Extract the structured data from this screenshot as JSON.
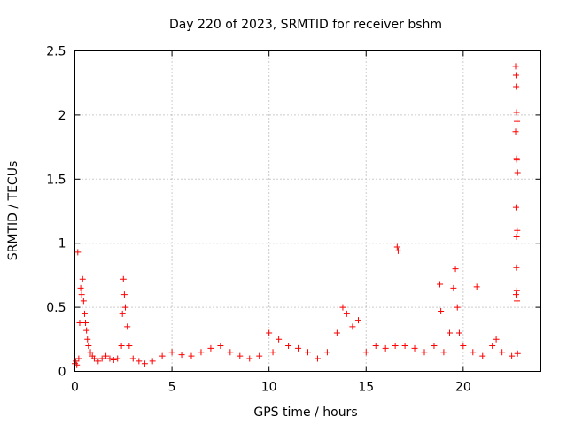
{
  "chart_data": {
    "type": "scatter",
    "title": "Day 220 of 2023, SRMTID for receiver bshm",
    "xlabel": "GPS time / hours",
    "ylabel": "SRMTID / TECUs",
    "xlim": [
      0,
      24
    ],
    "ylim": [
      0,
      2.5
    ],
    "grid": true,
    "marker": "+",
    "point_color": "#ff0000",
    "xticks": [
      0,
      5,
      10,
      15,
      20
    ],
    "xtick_labels": [
      "0",
      "5",
      "10",
      "15",
      "20"
    ],
    "yticks": [
      0,
      0.5,
      1,
      1.5,
      2,
      2.5
    ],
    "ytick_labels": [
      "0",
      "0.5",
      "1",
      "1.5",
      "2",
      "2.5"
    ],
    "series": [
      {
        "name": "SRMTID",
        "points": [
          [
            0.0,
            0.06
          ],
          [
            0.05,
            0.08
          ],
          [
            0.1,
            0.05
          ],
          [
            0.15,
            0.93
          ],
          [
            0.2,
            0.1
          ],
          [
            0.25,
            0.38
          ],
          [
            0.3,
            0.65
          ],
          [
            0.35,
            0.6
          ],
          [
            0.4,
            0.72
          ],
          [
            0.45,
            0.55
          ],
          [
            0.5,
            0.45
          ],
          [
            0.55,
            0.38
          ],
          [
            0.6,
            0.32
          ],
          [
            0.65,
            0.25
          ],
          [
            0.7,
            0.2
          ],
          [
            0.8,
            0.15
          ],
          [
            0.9,
            0.12
          ],
          [
            1.0,
            0.1
          ],
          [
            1.2,
            0.08
          ],
          [
            1.4,
            0.1
          ],
          [
            1.6,
            0.12
          ],
          [
            1.8,
            0.1
          ],
          [
            2.0,
            0.09
          ],
          [
            2.2,
            0.1
          ],
          [
            2.4,
            0.2
          ],
          [
            2.45,
            0.45
          ],
          [
            2.5,
            0.72
          ],
          [
            2.55,
            0.6
          ],
          [
            2.6,
            0.5
          ],
          [
            2.7,
            0.35
          ],
          [
            2.8,
            0.2
          ],
          [
            3.0,
            0.1
          ],
          [
            3.3,
            0.08
          ],
          [
            3.6,
            0.06
          ],
          [
            4.0,
            0.08
          ],
          [
            4.5,
            0.12
          ],
          [
            5.0,
            0.15
          ],
          [
            5.5,
            0.13
          ],
          [
            6.0,
            0.12
          ],
          [
            6.5,
            0.15
          ],
          [
            7.0,
            0.18
          ],
          [
            7.5,
            0.2
          ],
          [
            8.0,
            0.15
          ],
          [
            8.5,
            0.12
          ],
          [
            9.0,
            0.1
          ],
          [
            9.5,
            0.12
          ],
          [
            10.0,
            0.3
          ],
          [
            10.2,
            0.15
          ],
          [
            10.5,
            0.25
          ],
          [
            11.0,
            0.2
          ],
          [
            11.5,
            0.18
          ],
          [
            12.0,
            0.15
          ],
          [
            12.5,
            0.1
          ],
          [
            13.0,
            0.15
          ],
          [
            13.5,
            0.3
          ],
          [
            13.8,
            0.5
          ],
          [
            14.0,
            0.45
          ],
          [
            14.3,
            0.35
          ],
          [
            14.6,
            0.4
          ],
          [
            15.0,
            0.15
          ],
          [
            15.5,
            0.2
          ],
          [
            16.0,
            0.18
          ],
          [
            16.5,
            0.2
          ],
          [
            16.6,
            0.97
          ],
          [
            16.65,
            0.94
          ],
          [
            17.0,
            0.2
          ],
          [
            17.5,
            0.18
          ],
          [
            18.0,
            0.15
          ],
          [
            18.5,
            0.2
          ],
          [
            18.8,
            0.68
          ],
          [
            18.85,
            0.47
          ],
          [
            19.0,
            0.15
          ],
          [
            19.3,
            0.3
          ],
          [
            19.5,
            0.65
          ],
          [
            19.6,
            0.8
          ],
          [
            19.7,
            0.5
          ],
          [
            19.8,
            0.3
          ],
          [
            20.0,
            0.2
          ],
          [
            20.5,
            0.15
          ],
          [
            20.7,
            0.66
          ],
          [
            21.0,
            0.12
          ],
          [
            21.5,
            0.2
          ],
          [
            21.7,
            0.25
          ],
          [
            22.0,
            0.15
          ],
          [
            22.5,
            0.12
          ],
          [
            22.7,
            2.38
          ],
          [
            22.72,
            2.31
          ],
          [
            22.73,
            2.22
          ],
          [
            22.75,
            2.02
          ],
          [
            22.77,
            1.95
          ],
          [
            22.7,
            1.87
          ],
          [
            22.75,
            1.66
          ],
          [
            22.76,
            1.65
          ],
          [
            22.8,
            1.55
          ],
          [
            22.72,
            1.28
          ],
          [
            22.78,
            1.1
          ],
          [
            22.75,
            1.05
          ],
          [
            22.74,
            0.81
          ],
          [
            22.76,
            0.63
          ],
          [
            22.72,
            0.6
          ],
          [
            22.77,
            0.55
          ],
          [
            22.8,
            0.14
          ]
        ]
      }
    ]
  }
}
